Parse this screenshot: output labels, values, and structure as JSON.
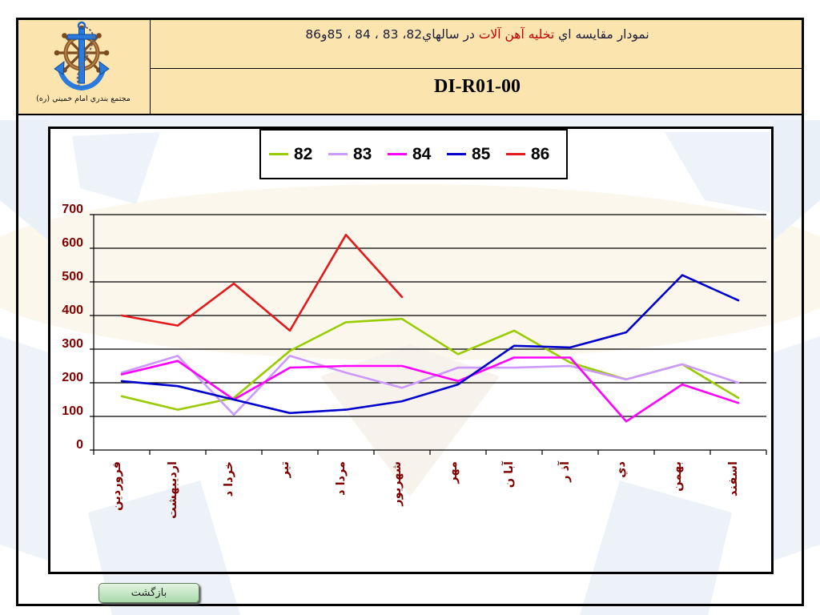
{
  "header": {
    "logo_icon": "anchor-ship-wheel-logo",
    "organization": "مجتمع بندري امام خميني (ره)",
    "title": {
      "prefix": "نمودار مقايسه اي",
      "highlight": "تخليه آهن آلات",
      "suffix": "در سالهاي82، 83 ، 84 ، 85و86"
    },
    "document_code": "DI-R01-00"
  },
  "colors": {
    "header_background": "#FCE4AE",
    "title_text": "#1B1B3A",
    "title_highlight": "#C00000",
    "axis_labels": "#800000"
  },
  "chart_data": {
    "type": "line",
    "categories": [
      "فروردين",
      "ارديبهشت",
      "خردا د",
      "تير",
      "مردا د",
      "شهريور",
      "مهر",
      "آبا ن",
      "آذ ر",
      "دي",
      "بهمن",
      "اسفند"
    ],
    "ylim": [
      0,
      700
    ],
    "yticks": [
      0,
      100,
      200,
      300,
      400,
      500,
      600,
      700
    ],
    "grid": true,
    "legend_position": "top",
    "series": [
      {
        "name": "82",
        "color": "#99CC00",
        "values": [
          160,
          120,
          155,
          295,
          380,
          390,
          285,
          355,
          260,
          210,
          255,
          155
        ]
      },
      {
        "name": "83",
        "color": "#CC99FF",
        "values": [
          230,
          280,
          105,
          280,
          230,
          185,
          245,
          245,
          250,
          210,
          255,
          200
        ]
      },
      {
        "name": "84",
        "color": "#FF00FF",
        "values": [
          225,
          265,
          150,
          245,
          250,
          250,
          205,
          275,
          275,
          85,
          195,
          140
        ]
      },
      {
        "name": "85",
        "color": "#0000CC",
        "values": [
          205,
          190,
          150,
          110,
          120,
          145,
          195,
          310,
          305,
          350,
          520,
          445
        ]
      },
      {
        "name": "86",
        "color": "#E31A1C",
        "values": [
          400,
          370,
          495,
          355,
          640,
          455,
          null,
          null,
          null,
          null,
          null,
          null
        ]
      }
    ]
  },
  "navigation": {
    "back_label": "بازگشت"
  }
}
